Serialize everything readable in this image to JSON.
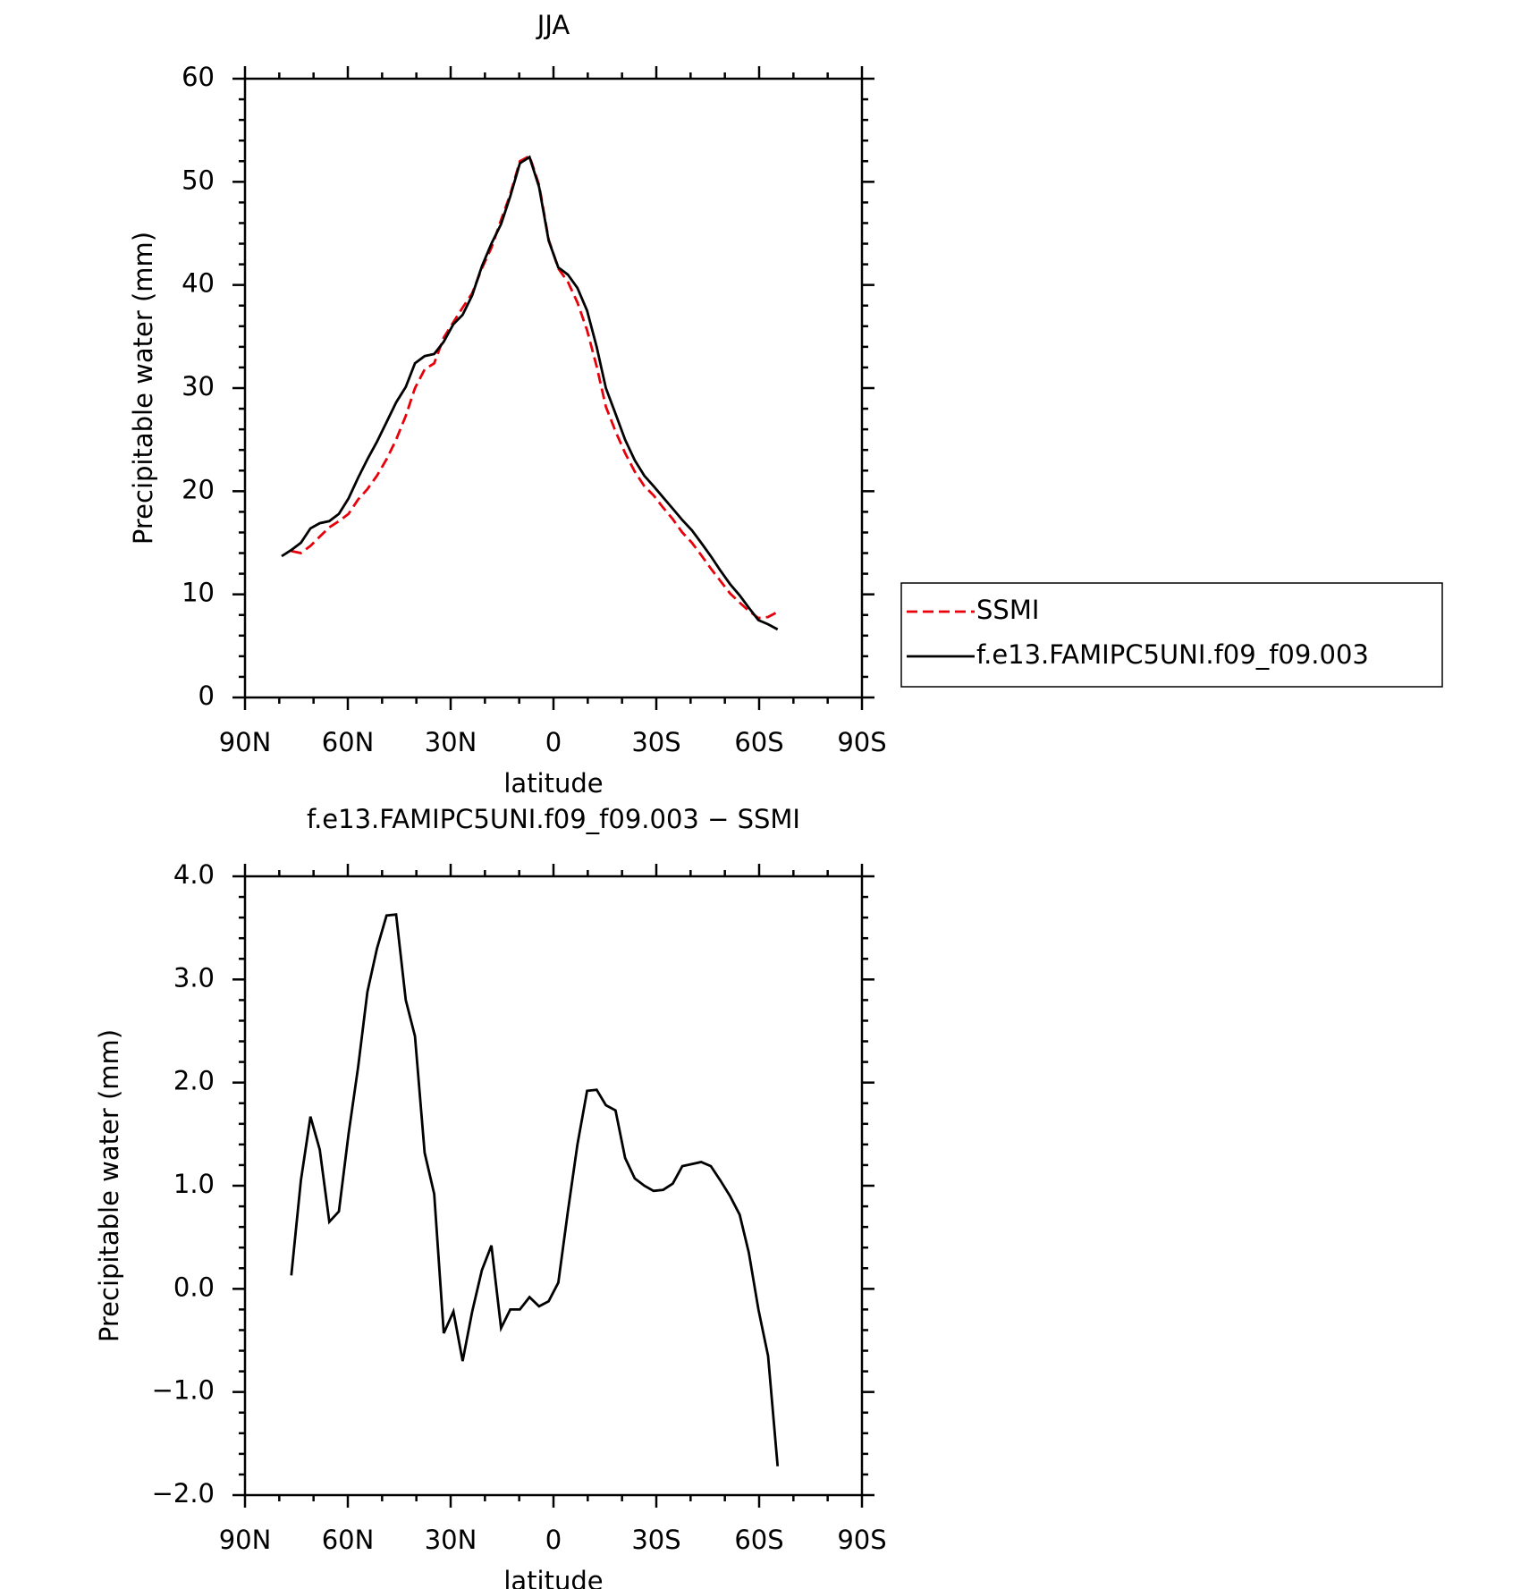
{
  "chart_data": [
    {
      "type": "line",
      "title": "JJA",
      "xlabel": "latitude",
      "ylabel": "Precipitable water (mm)",
      "x": [
        79.3,
        76.5,
        73.7,
        70.9,
        68.2,
        65.4,
        62.6,
        59.8,
        57.0,
        54.3,
        51.5,
        48.7,
        45.9,
        43.1,
        40.4,
        37.6,
        34.8,
        32.0,
        29.2,
        26.5,
        23.7,
        20.9,
        18.1,
        15.3,
        12.6,
        9.8,
        7.0,
        4.2,
        1.4,
        -1.4,
        -4.2,
        -7.0,
        -9.8,
        -12.6,
        -15.3,
        -18.1,
        -20.9,
        -23.7,
        -26.5,
        -29.2,
        -32.0,
        -34.8,
        -37.6,
        -40.4,
        -43.1,
        -45.9,
        -48.7,
        -51.5,
        -54.3,
        -57.0,
        -59.8,
        -62.6,
        -65.4
      ],
      "series": [
        {
          "name": "SSMI",
          "color": "#e8000b",
          "linestyle": "dashed",
          "values": [
            null,
            14.2,
            14.0,
            14.7,
            15.6,
            16.5,
            17.1,
            17.8,
            19.2,
            20.2,
            21.5,
            23.1,
            25.0,
            27.3,
            30.0,
            31.8,
            32.4,
            34.9,
            36.4,
            37.8,
            39.2,
            41.6,
            43.6,
            46.3,
            48.8,
            52.0,
            52.5,
            49.7,
            44.4,
            41.6,
            40.3,
            38.3,
            35.6,
            32.1,
            28.2,
            25.8,
            23.7,
            21.9,
            20.5,
            19.6,
            18.4,
            17.3,
            16.0,
            15.0,
            13.8,
            12.5,
            11.3,
            10.1,
            9.2,
            8.4,
            7.7,
            7.8,
            8.3
          ]
        },
        {
          "name": "f.e13.FAMIPC5UNI.f09_f09.003",
          "color": "#000000",
          "linestyle": "solid",
          "values": [
            13.7,
            14.3,
            15.0,
            16.4,
            16.9,
            17.1,
            17.8,
            19.3,
            21.3,
            23.1,
            24.8,
            26.7,
            28.6,
            30.1,
            32.4,
            33.1,
            33.3,
            34.5,
            36.2,
            37.1,
            39.0,
            41.8,
            44.0,
            45.9,
            48.6,
            51.8,
            52.4,
            49.5,
            44.3,
            41.7,
            41.0,
            39.7,
            37.5,
            34.0,
            30.0,
            27.5,
            25.0,
            23.0,
            21.5,
            20.5,
            19.4,
            18.3,
            17.2,
            16.2,
            15.0,
            13.7,
            12.3,
            11.0,
            9.9,
            8.7,
            7.5,
            7.1,
            6.6
          ]
        }
      ],
      "xlim": [
        90,
        -90
      ],
      "xticks": [
        {
          "value": 90,
          "label": "90N"
        },
        {
          "value": 60,
          "label": "60N"
        },
        {
          "value": 30,
          "label": "30N"
        },
        0,
        {
          "value": -30,
          "label": "30S"
        },
        {
          "value": -60,
          "label": "60S"
        },
        {
          "value": -90,
          "label": "90S"
        }
      ],
      "ylim": [
        0,
        60
      ],
      "yticks": [
        0,
        10,
        20,
        30,
        40,
        50,
        60
      ],
      "legend": "right"
    },
    {
      "type": "line",
      "title": "f.e13.FAMIPC5UNI.f09_f09.003 − SSMI",
      "xlabel": "latitude",
      "ylabel": "Precipitable water (mm)",
      "x": [
        76.5,
        73.7,
        70.9,
        68.2,
        65.4,
        62.6,
        59.8,
        57.0,
        54.3,
        51.5,
        48.7,
        45.9,
        43.1,
        40.4,
        37.6,
        34.8,
        32.0,
        29.2,
        26.5,
        23.7,
        20.9,
        18.1,
        15.3,
        12.6,
        9.8,
        7.0,
        4.2,
        1.4,
        -1.4,
        -4.2,
        -7.0,
        -9.8,
        -12.6,
        -15.3,
        -18.1,
        -20.9,
        -23.7,
        -26.5,
        -29.2,
        -32.0,
        -34.8,
        -37.6,
        -40.4,
        -43.1,
        -45.9,
        -48.7,
        -51.5,
        -54.3,
        -57.0,
        -59.8,
        -62.6,
        -65.4
      ],
      "series": [
        {
          "color": "#000000",
          "linestyle": "solid",
          "values": [
            0.13,
            1.05,
            1.67,
            1.35,
            0.65,
            0.75,
            1.5,
            2.15,
            2.88,
            3.3,
            3.62,
            3.63,
            2.8,
            2.45,
            1.32,
            0.92,
            -0.43,
            -0.22,
            -0.7,
            -0.22,
            0.18,
            0.42,
            -0.38,
            -0.2,
            -0.2,
            -0.08,
            -0.17,
            -0.12,
            0.06,
            0.75,
            1.4,
            1.92,
            1.93,
            1.78,
            1.73,
            1.27,
            1.07,
            1.0,
            0.95,
            0.96,
            1.02,
            1.19,
            1.21,
            1.23,
            1.19,
            1.05,
            0.9,
            0.72,
            0.35,
            -0.2,
            -0.65,
            -1.72
          ]
        }
      ],
      "xlim": [
        90,
        -90
      ],
      "xticks": [
        {
          "value": 90,
          "label": "90N"
        },
        {
          "value": 60,
          "label": "60N"
        },
        {
          "value": 30,
          "label": "30N"
        },
        0,
        {
          "value": -30,
          "label": "30S"
        },
        {
          "value": -60,
          "label": "60S"
        },
        {
          "value": -90,
          "label": "90S"
        }
      ],
      "ylim": [
        -2,
        4
      ],
      "yticks": [
        {
          "value": -2,
          "label": "−2.0"
        },
        {
          "value": -1,
          "label": "−1.0"
        },
        {
          "value": 0,
          "label": "0.0"
        },
        {
          "value": 1,
          "label": "1.0"
        },
        {
          "value": 2,
          "label": "2.0"
        },
        {
          "value": 3,
          "label": "3.0"
        },
        {
          "value": 4,
          "label": "4.0"
        }
      ]
    }
  ]
}
